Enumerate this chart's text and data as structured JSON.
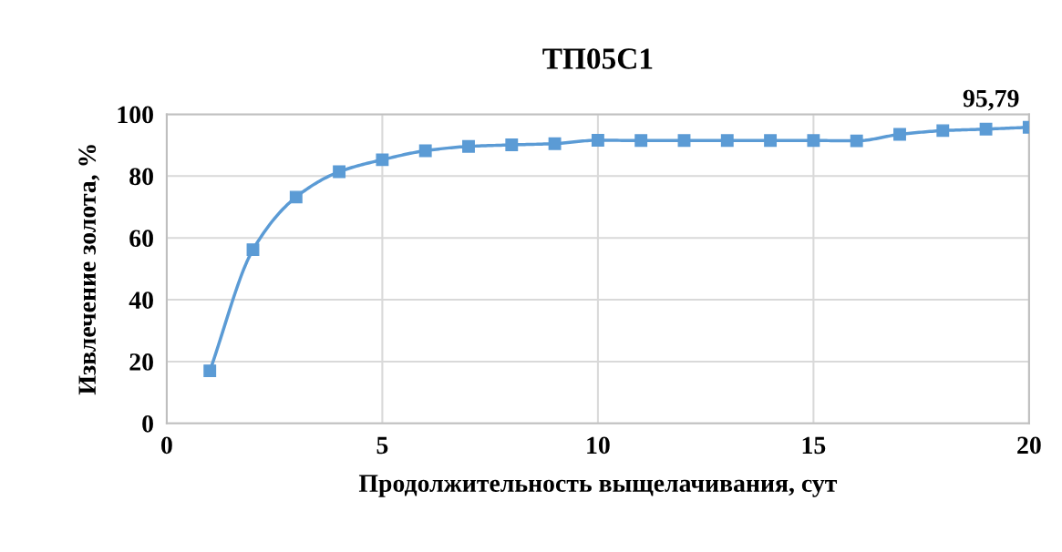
{
  "chart_data": {
    "type": "line",
    "title": "ТП05С1",
    "xlabel": "Продолжительность выщелачивания, сут",
    "ylabel": "Извлечение золота, %",
    "x": [
      1,
      2,
      3,
      4,
      5,
      6,
      7,
      8,
      9,
      10,
      11,
      12,
      13,
      14,
      15,
      16,
      17,
      18,
      19,
      20
    ],
    "series": [
      {
        "color": "#5b9bd5",
        "values": [
          17.0,
          56.2,
          73.2,
          81.4,
          85.3,
          88.2,
          89.6,
          90.1,
          90.5,
          91.6,
          91.5,
          91.5,
          91.5,
          91.5,
          91.5,
          91.4,
          93.5,
          94.7,
          95.2,
          95.79
        ],
        "value_labels": [
          null,
          null,
          null,
          null,
          null,
          null,
          null,
          null,
          null,
          null,
          null,
          null,
          null,
          null,
          null,
          null,
          null,
          null,
          null,
          "95,79"
        ]
      }
    ],
    "xlim": [
      0,
      20
    ],
    "xticks": [
      0,
      5,
      10,
      15,
      20
    ],
    "ylim": [
      0,
      100
    ],
    "yticks": [
      0,
      20,
      40,
      60,
      80,
      100
    ],
    "grid": true,
    "marker": "square",
    "line_style": "solid",
    "legend": false
  }
}
